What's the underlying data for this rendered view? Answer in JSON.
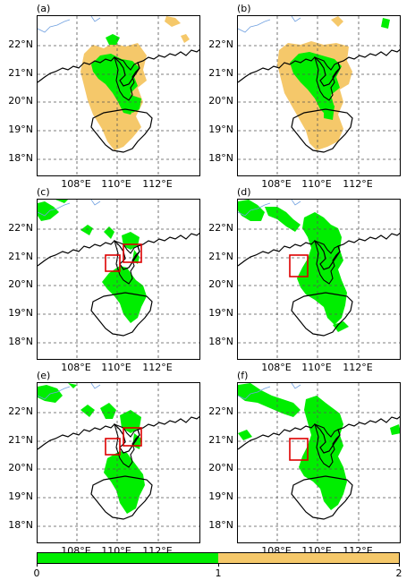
{
  "panels": [
    {
      "label": "(a)"
    },
    {
      "label": "(b)"
    },
    {
      "label": "(c)"
    },
    {
      "label": "(d)"
    },
    {
      "label": "(e)"
    },
    {
      "label": "(f)"
    }
  ],
  "lat_ticks": [
    "22°N",
    "21°N",
    "20°N",
    "19°N",
    "18°N"
  ],
  "lon_ticks": [
    "108°E",
    "110°E",
    "112°E"
  ],
  "colorbar": {
    "ticks": [
      "0",
      "1",
      "2"
    ],
    "colors": {
      "level_0_1": "#00ee00",
      "level_1_2": "#f5c86a"
    }
  },
  "colors": {
    "green": "#00ee00",
    "orange": "#f5c86a",
    "highlight_box": "#dd0000",
    "river": "#6fa0e0",
    "coast": "#000000",
    "grid": "#555555"
  }
}
